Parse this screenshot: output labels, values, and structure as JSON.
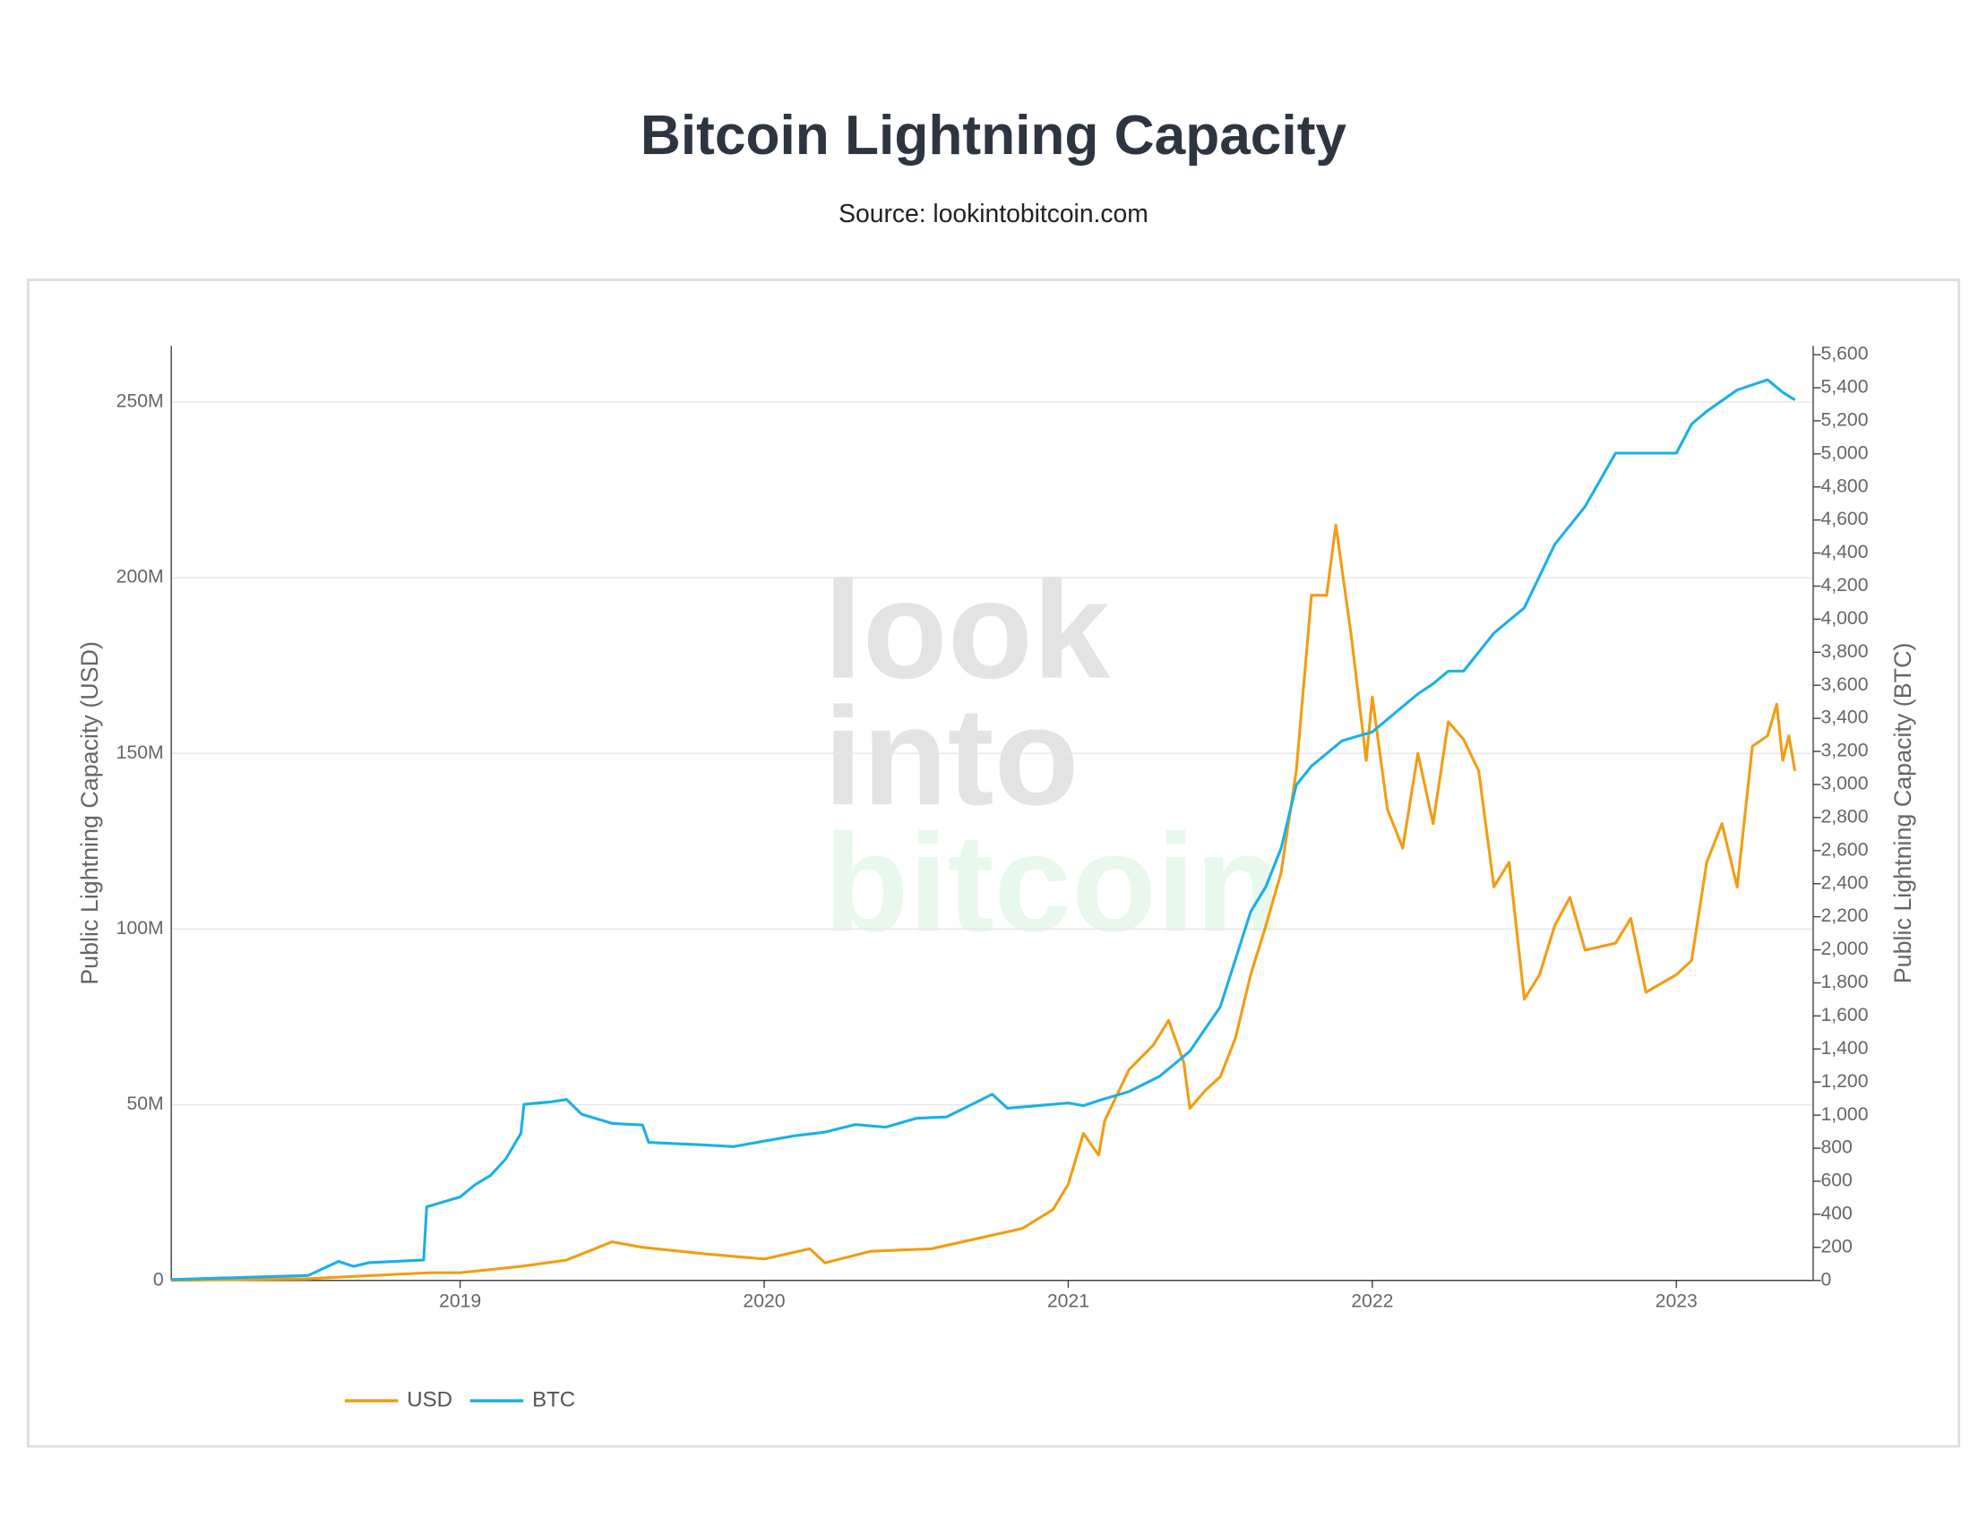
{
  "chart_data": {
    "type": "line",
    "title": "Bitcoin Lightning Capacity",
    "subtitle": "Source: lookintobitcoin.com",
    "watermark": [
      "look",
      "into",
      "bitcoin"
    ],
    "ylabel": "Public Lightning Capacity (USD)",
    "y2label": "Public Lightning Capacity (BTC)",
    "xlim": [
      2018.05,
      2023.45
    ],
    "xticks": [
      2019,
      2020,
      2021,
      2022,
      2023
    ],
    "ylim": [
      0,
      266000000
    ],
    "yticks": [
      0,
      {
        "value": 50000000,
        "label": "50M"
      },
      {
        "value": 100000000,
        "label": "100M"
      },
      {
        "value": 150000000,
        "label": "150M"
      },
      {
        "value": 200000000,
        "label": "200M"
      },
      {
        "value": 250000000,
        "label": "250M"
      }
    ],
    "y2lim": [
      0,
      5654
    ],
    "y2ticks": [
      0,
      200,
      400,
      600,
      800,
      {
        "value": 1000,
        "label": "1,000"
      },
      {
        "value": 1200,
        "label": "1,200"
      },
      {
        "value": 1400,
        "label": "1,400"
      },
      {
        "value": 1600,
        "label": "1,600"
      },
      {
        "value": 1800,
        "label": "1,800"
      },
      {
        "value": 2000,
        "label": "2,000"
      },
      {
        "value": 2200,
        "label": "2,200"
      },
      {
        "value": 2400,
        "label": "2,400"
      },
      {
        "value": 2600,
        "label": "2,600"
      },
      {
        "value": 2800,
        "label": "2,800"
      },
      {
        "value": 3000,
        "label": "3,000"
      },
      {
        "value": 3200,
        "label": "3,200"
      },
      {
        "value": 3400,
        "label": "3,400"
      },
      {
        "value": 3600,
        "label": "3,600"
      },
      {
        "value": 3800,
        "label": "3,800"
      },
      {
        "value": 4000,
        "label": "4,000"
      },
      {
        "value": 4200,
        "label": "4,200"
      },
      {
        "value": 4400,
        "label": "4,400"
      },
      {
        "value": 4600,
        "label": "4,600"
      },
      {
        "value": 4800,
        "label": "4,800"
      },
      {
        "value": 5000,
        "label": "5,000"
      },
      {
        "value": 5200,
        "label": "5,200"
      },
      {
        "value": 5400,
        "label": "5,400"
      },
      {
        "value": 5600,
        "label": "5,600"
      }
    ],
    "grid": true,
    "legend": "bottom-left",
    "series": [
      {
        "name": "USD",
        "color": "#f39c12",
        "x": [
          2018.05,
          2018.5,
          2018.9,
          2019.0,
          2019.2,
          2019.35,
          2019.5,
          2019.6,
          2019.8,
          2020.0,
          2020.15,
          2020.2,
          2020.35,
          2020.55,
          2020.7,
          2020.85,
          2020.95,
          2021.0,
          2021.05,
          2021.1,
          2021.12,
          2021.2,
          2021.28,
          2021.33,
          2021.38,
          2021.4,
          2021.45,
          2021.5,
          2021.55,
          2021.6,
          2021.65,
          2021.7,
          2021.75,
          2021.8,
          2021.85,
          2021.88,
          2021.93,
          2021.98,
          2022.0,
          2022.05,
          2022.1,
          2022.15,
          2022.2,
          2022.25,
          2022.3,
          2022.35,
          2022.4,
          2022.45,
          2022.5,
          2022.55,
          2022.6,
          2022.65,
          2022.7,
          2022.8,
          2022.85,
          2022.9,
          2023.0,
          2023.05,
          2023.1,
          2023.15,
          2023.2,
          2023.25,
          2023.3,
          2023.33,
          2023.35,
          2023.37,
          2023.39
        ],
        "values": [
          0,
          500000,
          2200000,
          2200000,
          4000000,
          5800000,
          11000000,
          9400000,
          7600000,
          6100000,
          9000000,
          5000000,
          8300000,
          9000000,
          11900000,
          14800000,
          20200000,
          27400000,
          41800000,
          35700000,
          45500000,
          60000000,
          67000000,
          74000000,
          62000000,
          49000000,
          54000000,
          58000000,
          69000000,
          87000000,
          101000000,
          116000000,
          145000000,
          195000000,
          195000000,
          215000000,
          184000000,
          148000000,
          166000000,
          134000000,
          123000000,
          150000000,
          130000000,
          159000000,
          154000000,
          145000000,
          112000000,
          119000000,
          80000000,
          87000000,
          101000000,
          109000000,
          94000000,
          96000000,
          103000000,
          82000000,
          87000000,
          91000000,
          119000000,
          130000000,
          112000000,
          152000000,
          155000000,
          164000000,
          148000000,
          155000000,
          145000000
        ]
      },
      {
        "name": "BTC",
        "color": "#1ab0e6",
        "axis": "y2",
        "x": [
          2018.05,
          2018.5,
          2018.6,
          2018.65,
          2018.7,
          2018.88,
          2018.89,
          2019.0,
          2019.05,
          2019.1,
          2019.15,
          2019.2,
          2019.21,
          2019.3,
          2019.35,
          2019.4,
          2019.5,
          2019.6,
          2019.62,
          2019.8,
          2019.9,
          2020.0,
          2020.1,
          2020.2,
          2020.3,
          2020.4,
          2020.5,
          2020.6,
          2020.7,
          2020.75,
          2020.8,
          2020.9,
          2021.0,
          2021.05,
          2021.1,
          2021.2,
          2021.3,
          2021.4,
          2021.5,
          2021.6,
          2021.65,
          2021.7,
          2021.75,
          2021.8,
          2021.9,
          2022.0,
          2022.1,
          2022.15,
          2022.2,
          2022.25,
          2022.3,
          2022.4,
          2022.45,
          2022.5,
          2022.6,
          2022.7,
          2022.8,
          2022.9,
          2023.0,
          2023.05,
          2023.1,
          2023.2,
          2023.3,
          2023.35,
          2023.39
        ],
        "values": [
          5,
          30,
          115,
          85,
          107,
          123,
          445,
          505,
          580,
          635,
          735,
          890,
          1065,
          1080,
          1095,
          1005,
          950,
          940,
          835,
          820,
          810,
          843,
          875,
          897,
          943,
          927,
          981,
          989,
          1080,
          1126,
          1042,
          1057,
          1073,
          1057,
          1088,
          1142,
          1234,
          1387,
          1655,
          2230,
          2383,
          2613,
          2996,
          3111,
          3264,
          3318,
          3471,
          3548,
          3609,
          3686,
          3686,
          3916,
          3992,
          4069,
          4452,
          4682,
          5004,
          5004,
          5004,
          5180,
          5257,
          5387,
          5448,
          5372,
          5326
        ]
      }
    ]
  }
}
